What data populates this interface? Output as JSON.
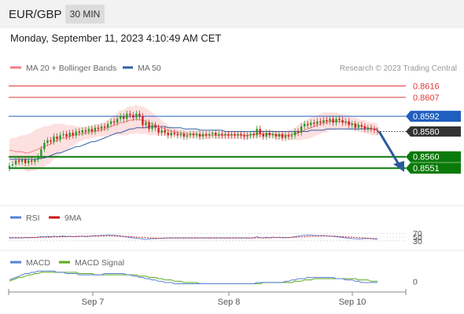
{
  "header": {
    "symbol": "EUR/GBP",
    "timeframe": "30 MIN",
    "datetime": "Monday, September 11, 2023 4:10:49 AM CET"
  },
  "colors": {
    "resistance": "#e03a3a",
    "pivot": "#1f5fbf",
    "support": "#0a7a0a",
    "ma20": "#f08080",
    "bollinger_fill": "#fde0e0",
    "ma50": "#3060a8",
    "candle_up": "#2a9a2a",
    "candle_down": "#cc2222",
    "rsi": "#5a7fd6",
    "rsi_ma": "#cc1111",
    "macd": "#5a7fd6",
    "macd_signal": "#5aaa1a",
    "arrow": "#2a5a9a",
    "current_price_bg": "#333333"
  },
  "chart_data": [
    {
      "type": "candlestick",
      "title": "EUR/GBP",
      "legend": [
        {
          "name": "MA 20 + Bollinger Bands",
          "color": "#f08080"
        },
        {
          "name": "MA 50",
          "color": "#3060a8"
        }
      ],
      "credit": "Research © 2023 Trading Central",
      "x_ticks": [
        "Sep 7",
        "Sep 8",
        "Sep 10"
      ],
      "ylim": [
        0.8535,
        0.8625
      ],
      "levels": [
        {
          "label": "0.8616",
          "value": 0.8616,
          "role": "resistance"
        },
        {
          "label": "0.8607",
          "value": 0.8607,
          "role": "resistance"
        },
        {
          "label": "0.8592",
          "value": 0.8592,
          "role": "pivot"
        },
        {
          "label": "0.8580",
          "value": 0.858,
          "role": "current"
        },
        {
          "label": "0.8560",
          "value": 0.856,
          "role": "support"
        },
        {
          "label": "0.8551",
          "value": 0.8551,
          "role": "support"
        }
      ],
      "close": [
        0.8553,
        0.8554,
        0.8557,
        0.8556,
        0.8558,
        0.8555,
        0.8557,
        0.8556,
        0.8558,
        0.856,
        0.8566,
        0.8571,
        0.8573,
        0.8572,
        0.8576,
        0.8574,
        0.8577,
        0.8578,
        0.8576,
        0.8579,
        0.8577,
        0.858,
        0.8579,
        0.8581,
        0.858,
        0.8582,
        0.858,
        0.8583,
        0.8582,
        0.8584,
        0.8583,
        0.8586,
        0.8588,
        0.8587,
        0.859,
        0.8592,
        0.859,
        0.8594,
        0.8593,
        0.8591,
        0.8594,
        0.8592,
        0.8585,
        0.8587,
        0.8582,
        0.8585,
        0.8583,
        0.8579,
        0.8581,
        0.8579,
        0.8577,
        0.8579,
        0.8578,
        0.8577,
        0.8578,
        0.8576,
        0.8577,
        0.8578,
        0.8577,
        0.8578,
        0.8576,
        0.8578,
        0.8577,
        0.8578,
        0.8579,
        0.8577,
        0.8578,
        0.8577,
        0.8578,
        0.8577,
        0.8578,
        0.8577,
        0.8578,
        0.8577,
        0.8576,
        0.8577,
        0.8578,
        0.8577,
        0.8582,
        0.8578,
        0.8576,
        0.8579,
        0.8577,
        0.8578,
        0.8576,
        0.8578,
        0.8575,
        0.8577,
        0.8576,
        0.8577,
        0.858,
        0.8579,
        0.8584,
        0.8586,
        0.8585,
        0.8587,
        0.8586,
        0.8588,
        0.8587,
        0.8589,
        0.8588,
        0.859,
        0.8587,
        0.859,
        0.8589,
        0.8587,
        0.8588,
        0.8585,
        0.8586,
        0.8583,
        0.8585,
        0.8584,
        0.8582,
        0.8583,
        0.8582,
        0.8581,
        0.858
      ],
      "ma20": [
        0.8565,
        0.8565,
        0.8564,
        0.8564,
        0.8564,
        0.8563,
        0.8563,
        0.8564,
        0.8565,
        0.8566,
        0.8567,
        0.8568,
        0.8569,
        0.857,
        0.8572,
        0.8573,
        0.8574,
        0.8575,
        0.8575,
        0.8576,
        0.8577,
        0.8577,
        0.8578,
        0.8578,
        0.8579,
        0.8579,
        0.858,
        0.858,
        0.8581,
        0.8581,
        0.8582,
        0.8583,
        0.8584,
        0.8585,
        0.8586,
        0.8587,
        0.8587,
        0.8588,
        0.8589,
        0.8589,
        0.859,
        0.8589,
        0.8589,
        0.8588,
        0.8587,
        0.8586,
        0.8585,
        0.8584,
        0.8583,
        0.8582,
        0.8581,
        0.858,
        0.858,
        0.8579,
        0.8579,
        0.8578,
        0.8578,
        0.8578,
        0.8578,
        0.8578,
        0.8577,
        0.8577,
        0.8577,
        0.8577,
        0.8577,
        0.8577,
        0.8577,
        0.8577,
        0.8577,
        0.8577,
        0.8577,
        0.8577,
        0.8577,
        0.8577,
        0.8577,
        0.8577,
        0.8577,
        0.8578,
        0.8578,
        0.8578,
        0.8578,
        0.8578,
        0.8578,
        0.8578,
        0.8577,
        0.8577,
        0.8577,
        0.8577,
        0.8577,
        0.8578,
        0.8578,
        0.8579,
        0.858,
        0.8581,
        0.8582,
        0.8583,
        0.8584,
        0.8585,
        0.8586,
        0.8587,
        0.8587,
        0.8588,
        0.8588,
        0.8588,
        0.8588,
        0.8588,
        0.8587,
        0.8587,
        0.8586,
        0.8586,
        0.8585,
        0.8584,
        0.8584,
        0.8583,
        0.8582,
        0.8582,
        0.8581
      ],
      "ma50": [
        0.8558,
        0.8558,
        0.8558,
        0.8558,
        0.8558,
        0.8558,
        0.8558,
        0.8558,
        0.8558,
        0.8558,
        0.8559,
        0.8559,
        0.856,
        0.8561,
        0.8562,
        0.8563,
        0.8563,
        0.8564,
        0.8565,
        0.8566,
        0.8567,
        0.8568,
        0.8568,
        0.8569,
        0.857,
        0.8571,
        0.8572,
        0.8572,
        0.8573,
        0.8574,
        0.8575,
        0.8576,
        0.8577,
        0.8578,
        0.8579,
        0.8579,
        0.858,
        0.8581,
        0.8582,
        0.8582,
        0.8583,
        0.8583,
        0.8583,
        0.8583,
        0.8584,
        0.8584,
        0.8584,
        0.8584,
        0.8584,
        0.8584,
        0.8583,
        0.8583,
        0.8583,
        0.8583,
        0.8583,
        0.8582,
        0.8582,
        0.8582,
        0.8582,
        0.8582,
        0.8581,
        0.8581,
        0.8581,
        0.8581,
        0.8581,
        0.8581,
        0.8581,
        0.8581,
        0.858,
        0.858,
        0.858,
        0.858,
        0.858,
        0.858,
        0.858,
        0.858,
        0.858,
        0.858,
        0.858,
        0.858,
        0.858,
        0.858,
        0.858,
        0.858,
        0.858,
        0.858,
        0.858,
        0.858,
        0.858,
        0.858,
        0.858,
        0.858,
        0.858,
        0.858,
        0.858,
        0.8581,
        0.8581,
        0.8581,
        0.8581,
        0.8581,
        0.8582,
        0.8582,
        0.8582,
        0.8582,
        0.8582,
        0.8582,
        0.8582,
        0.8582,
        0.8582,
        0.8582,
        0.8582,
        0.8582,
        0.8582,
        0.8582,
        0.8582,
        0.8582,
        0.8582
      ],
      "bb_halfwidth": [
        0.0009,
        0.001,
        0.0011,
        0.0012,
        0.0013,
        0.0014,
        0.0015,
        0.0015,
        0.0016,
        0.0016,
        0.0016,
        0.0016,
        0.0015,
        0.0015,
        0.0014,
        0.0013,
        0.0012,
        0.0011,
        0.001,
        0.0009,
        0.0008,
        0.0007,
        0.0006,
        0.0005,
        0.0005,
        0.0005,
        0.0005,
        0.0005,
        0.0005,
        0.0005,
        0.0006,
        0.0006,
        0.0007,
        0.0008,
        0.0009,
        0.001,
        0.001,
        0.0011,
        0.0011,
        0.0011,
        0.0011,
        0.0011,
        0.0011,
        0.001,
        0.001,
        0.0009,
        0.0008,
        0.0007,
        0.0006,
        0.0005,
        0.0004,
        0.0004,
        0.0003,
        0.0003,
        0.0003,
        0.0003,
        0.0003,
        0.0003,
        0.0003,
        0.0003,
        0.0003,
        0.0003,
        0.0003,
        0.0003,
        0.0003,
        0.0003,
        0.0003,
        0.0003,
        0.0003,
        0.0003,
        0.0003,
        0.0003,
        0.0003,
        0.0003,
        0.0003,
        0.0003,
        0.0003,
        0.0003,
        0.0003,
        0.0003,
        0.0003,
        0.0003,
        0.0003,
        0.0003,
        0.0003,
        0.0003,
        0.0003,
        0.0003,
        0.0004,
        0.0004,
        0.0005,
        0.0006,
        0.0007,
        0.0007,
        0.0008,
        0.0008,
        0.0008,
        0.0008,
        0.0008,
        0.0008,
        0.0008,
        0.0007,
        0.0007,
        0.0007,
        0.0006,
        0.0006,
        0.0006,
        0.0006,
        0.0005,
        0.0005,
        0.0005,
        0.0005,
        0.0005,
        0.0005,
        0.0005,
        0.0005,
        0.0005
      ],
      "projection": {
        "from": 0.858,
        "to": 0.8553
      },
      "current_price": "0.8580"
    },
    {
      "type": "line",
      "legend": [
        {
          "name": "RSI",
          "color": "#5a7fd6"
        },
        {
          "name": "9MA",
          "color": "#cc1111"
        }
      ],
      "y_ticks": [
        "70",
        "50",
        "30"
      ],
      "ylim": [
        0,
        100
      ],
      "rsi": [
        44,
        45,
        46,
        46,
        45,
        47,
        46,
        48,
        47,
        49,
        52,
        51,
        54,
        52,
        55,
        53,
        54,
        56,
        53,
        55,
        52,
        54,
        53,
        55,
        52,
        54,
        56,
        58,
        57,
        60,
        58,
        62,
        61,
        60,
        58,
        56,
        53,
        51,
        48,
        46,
        44,
        42,
        40,
        38,
        40,
        42,
        41,
        43,
        44,
        45,
        45,
        46,
        45,
        46,
        45,
        46,
        45,
        46,
        45,
        46,
        45,
        46,
        45,
        46,
        45,
        46,
        45,
        46,
        45,
        46,
        45,
        46,
        45,
        46,
        45,
        46,
        45,
        46,
        52,
        47,
        45,
        49,
        46,
        50,
        47,
        49,
        46,
        48,
        47,
        49,
        52,
        55,
        58,
        60,
        61,
        60,
        59,
        58,
        57,
        58,
        56,
        55,
        54,
        52,
        50,
        48,
        46,
        44,
        42,
        41,
        40,
        41,
        42,
        43,
        41,
        40,
        39
      ],
      "ma9": [
        47,
        47,
        47,
        47,
        47,
        47,
        47,
        48,
        48,
        48,
        49,
        49,
        50,
        50,
        51,
        51,
        52,
        52,
        52,
        53,
        53,
        53,
        54,
        54,
        54,
        54,
        55,
        55,
        55,
        56,
        56,
        56,
        56,
        55,
        55,
        54,
        54,
        53,
        52,
        51,
        50,
        49,
        48,
        47,
        46,
        45,
        45,
        44,
        44,
        44,
        45,
        45,
        45,
        45,
        45,
        45,
        45,
        45,
        45,
        45,
        45,
        45,
        45,
        45,
        45,
        45,
        45,
        45,
        45,
        45,
        45,
        45,
        45,
        45,
        45,
        45,
        45,
        45,
        46,
        46,
        46,
        46,
        46,
        47,
        47,
        47,
        47,
        47,
        47,
        48,
        49,
        50,
        51,
        52,
        53,
        54,
        55,
        55,
        56,
        56,
        56,
        55,
        55,
        54,
        53,
        52,
        51,
        50,
        49,
        48,
        47,
        46,
        45,
        44,
        43,
        42,
        42
      ]
    },
    {
      "type": "line",
      "legend": [
        {
          "name": "MACD",
          "color": "#5a7fd6"
        },
        {
          "name": "MACD Signal",
          "color": "#5aaa1a"
        }
      ],
      "y_ticks": [
        "0"
      ],
      "ylim": [
        -0.0006,
        0.001
      ],
      "macd": [
        0.0001,
        0.0002,
        0.0003,
        0.0004,
        0.0005,
        0.0006,
        0.0006,
        0.0007,
        0.0007,
        0.0008,
        0.0008,
        0.0008,
        0.0008,
        0.0008,
        0.0008,
        0.0007,
        0.0007,
        0.0007,
        0.0006,
        0.0006,
        0.0006,
        0.0006,
        0.0005,
        0.0005,
        0.0005,
        0.0005,
        0.0005,
        0.0005,
        0.0005,
        0.0005,
        0.0006,
        0.0006,
        0.0006,
        0.0006,
        0.0006,
        0.0006,
        0.0006,
        0.0005,
        0.0005,
        0.0004,
        0.0004,
        0.0003,
        0.0003,
        0.0002,
        0.0002,
        0.0001,
        0.0001,
        0.0,
        0.0,
        -0.0001,
        -0.0001,
        -0.0001,
        -0.0002,
        -0.0002,
        -0.0002,
        -0.0002,
        -0.0002,
        -0.0002,
        -0.0002,
        -0.0002,
        -0.0002,
        -0.0002,
        -0.0002,
        -0.0002,
        -0.0002,
        -0.0002,
        -0.0002,
        -0.0002,
        -0.0002,
        -0.0002,
        -0.0002,
        -0.0002,
        -0.0002,
        -0.0002,
        -0.0002,
        -0.0002,
        -0.0002,
        -0.0002,
        -0.0001,
        -0.0001,
        -0.0001,
        -0.0001,
        -0.0001,
        -0.0001,
        -0.0001,
        -0.0001,
        -0.0001,
        0.0,
        0.0,
        0.0001,
        0.0001,
        0.0002,
        0.0002,
        0.0002,
        0.0003,
        0.0003,
        0.0003,
        0.0003,
        0.0003,
        0.0003,
        0.0003,
        0.0003,
        0.0003,
        0.0002,
        0.0002,
        0.0002,
        0.0001,
        0.0001,
        0.0001,
        0.0,
        0.0,
        -0.0001,
        -0.0001,
        -0.0001,
        -0.0001,
        -0.0001,
        -0.0001
      ],
      "signal": [
        0.0,
        0.0001,
        0.0002,
        0.0003,
        0.0003,
        0.0004,
        0.0005,
        0.0005,
        0.0006,
        0.0006,
        0.0007,
        0.0007,
        0.0007,
        0.0007,
        0.0007,
        0.0007,
        0.0007,
        0.0007,
        0.0007,
        0.0007,
        0.0007,
        0.0007,
        0.0006,
        0.0006,
        0.0006,
        0.0006,
        0.0006,
        0.0005,
        0.0005,
        0.0005,
        0.0005,
        0.0005,
        0.0005,
        0.0005,
        0.0005,
        0.0005,
        0.0005,
        0.0005,
        0.0005,
        0.0005,
        0.0005,
        0.0004,
        0.0004,
        0.0004,
        0.0003,
        0.0003,
        0.0003,
        0.0002,
        0.0002,
        0.0001,
        0.0001,
        0.0001,
        0.0,
        0.0,
        0.0,
        -0.0001,
        -0.0001,
        -0.0001,
        -0.0001,
        -0.0001,
        -0.0002,
        -0.0002,
        -0.0002,
        -0.0002,
        -0.0002,
        -0.0002,
        -0.0002,
        -0.0002,
        -0.0002,
        -0.0002,
        -0.0002,
        -0.0002,
        -0.0002,
        -0.0002,
        -0.0002,
        -0.0002,
        -0.0002,
        -0.0002,
        -0.0002,
        -0.0002,
        -0.0001,
        -0.0001,
        -0.0001,
        -0.0001,
        -0.0001,
        -0.0001,
        -0.0001,
        -0.0001,
        -0.0001,
        -0.0001,
        0.0,
        0.0,
        0.0,
        0.0001,
        0.0001,
        0.0001,
        0.0002,
        0.0002,
        0.0002,
        0.0002,
        0.0002,
        0.0002,
        0.0002,
        0.0002,
        0.0002,
        0.0002,
        0.0002,
        0.0002,
        0.0002,
        0.0002,
        0.0001,
        0.0001,
        0.0001,
        0.0001,
        0.0,
        0.0,
        0.0
      ]
    }
  ]
}
